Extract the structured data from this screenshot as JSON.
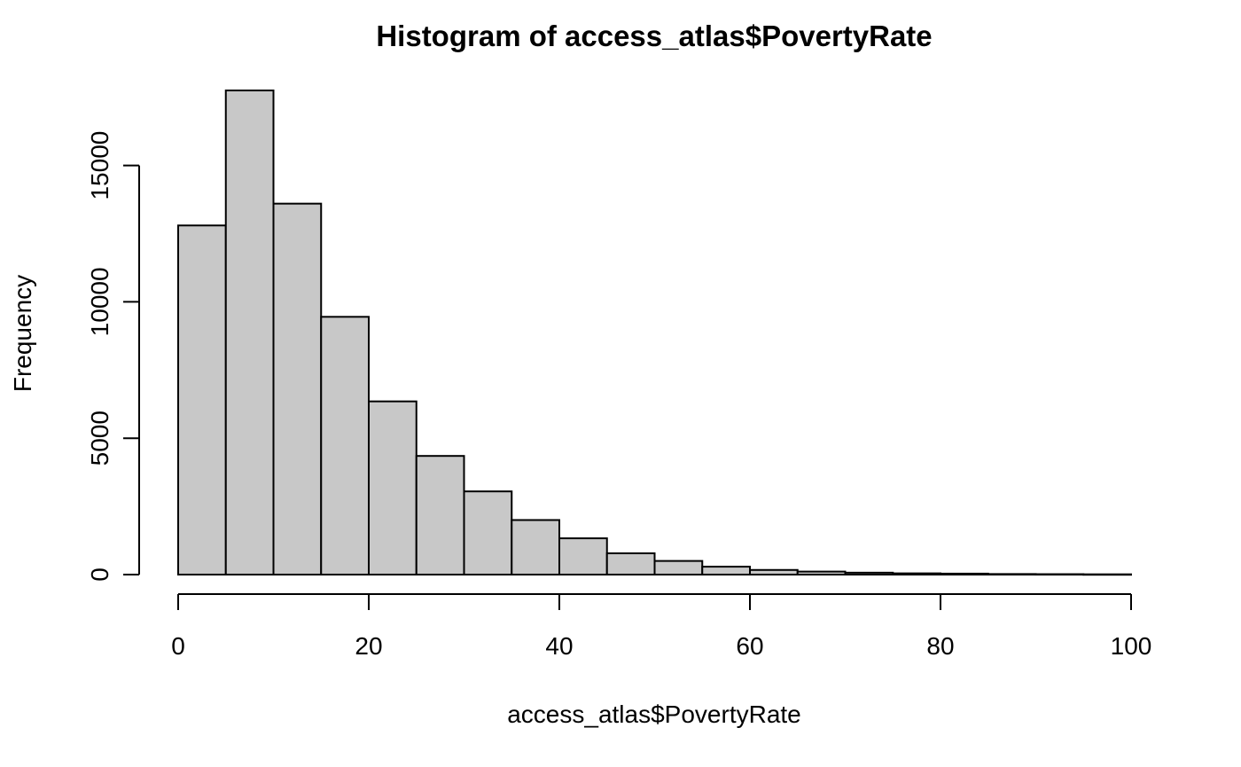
{
  "chart_data": {
    "type": "bar",
    "histogram": true,
    "title": "Histogram of access_atlas$PovertyRate",
    "xlabel": "access_atlas$PovertyRate",
    "ylabel": "Frequency",
    "bin_edges": [
      0,
      5,
      10,
      15,
      20,
      25,
      30,
      35,
      40,
      45,
      50,
      55,
      60,
      65,
      70,
      75,
      80,
      85,
      90,
      95,
      100
    ],
    "values": [
      12800,
      17750,
      13600,
      9450,
      6350,
      4350,
      3050,
      2000,
      1330,
      780,
      500,
      290,
      170,
      110,
      70,
      45,
      35,
      20,
      15,
      10
    ],
    "xlim": [
      0,
      100
    ],
    "ylim": [
      0,
      17750
    ],
    "x_ticks": [
      0,
      20,
      40,
      60,
      80,
      100
    ],
    "y_ticks": [
      0,
      5000,
      10000,
      15000
    ],
    "bar_color": "#c8c8c8",
    "edge_color": "#000000",
    "grid": false
  }
}
